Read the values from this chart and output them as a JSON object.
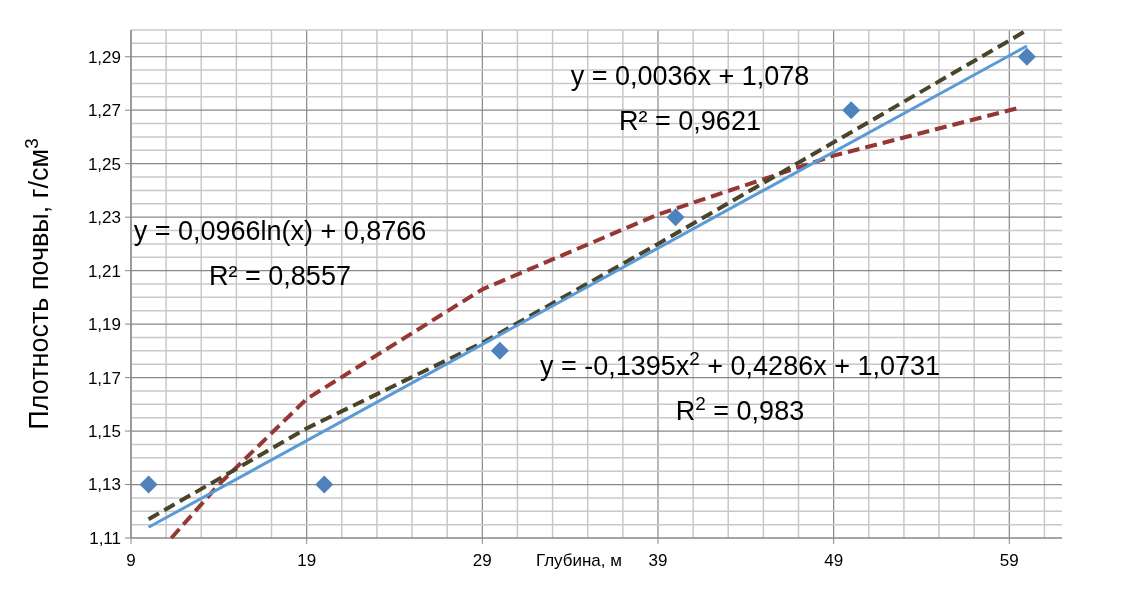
{
  "chart_data": {
    "type": "scatter",
    "xlabel": "Глубина, м",
    "ylabel": "Плотность почвы, г/см$^{3}$",
    "xlim": [
      9,
      62
    ],
    "xticks": [
      9,
      {
        "value": 11,
        "label": null
      },
      {
        "value": 13,
        "label": null
      },
      {
        "value": 15,
        "label": null
      },
      {
        "value": 17,
        "label": null
      },
      19,
      {
        "value": 21,
        "label": null
      },
      {
        "value": 23,
        "label": null
      },
      {
        "value": 25,
        "label": null
      },
      {
        "value": 27,
        "label": null
      },
      29,
      {
        "value": 31,
        "label": null
      },
      {
        "value": 33,
        "label": null
      },
      {
        "value": 35,
        "label": null
      },
      {
        "value": 37,
        "label": null
      },
      39,
      {
        "value": 41,
        "label": null
      },
      {
        "value": 43,
        "label": null
      },
      {
        "value": 45,
        "label": null
      },
      {
        "value": 47,
        "label": null
      },
      49,
      {
        "value": 51,
        "label": null
      },
      {
        "value": 53,
        "label": null
      },
      {
        "value": 55,
        "label": null
      },
      {
        "value": 57,
        "label": null
      },
      59,
      {
        "value": 61,
        "label": null
      }
    ],
    "ylim": [
      1.11,
      1.3
    ],
    "yticks": [
      {
        "value": 1.11,
        "label": "1,11"
      },
      {
        "value": 1.115,
        "label": null
      },
      {
        "value": 1.12,
        "label": null
      },
      {
        "value": 1.125,
        "label": null
      },
      {
        "value": 1.13,
        "label": "1,13"
      },
      {
        "value": 1.135,
        "label": null
      },
      {
        "value": 1.14,
        "label": null
      },
      {
        "value": 1.145,
        "label": null
      },
      {
        "value": 1.15,
        "label": "1,15"
      },
      {
        "value": 1.155,
        "label": null
      },
      {
        "value": 1.16,
        "label": null
      },
      {
        "value": 1.165,
        "label": null
      },
      {
        "value": 1.17,
        "label": "1,17"
      },
      {
        "value": 1.175,
        "label": null
      },
      {
        "value": 1.18,
        "label": null
      },
      {
        "value": 1.185,
        "label": null
      },
      {
        "value": 1.19,
        "label": "1,19"
      },
      {
        "value": 1.195,
        "label": null
      },
      {
        "value": 1.2,
        "label": null
      },
      {
        "value": 1.205,
        "label": null
      },
      {
        "value": 1.21,
        "label": "1,21"
      },
      {
        "value": 1.215,
        "label": null
      },
      {
        "value": 1.22,
        "label": null
      },
      {
        "value": 1.225,
        "label": null
      },
      {
        "value": 1.23,
        "label": "1,23"
      },
      {
        "value": 1.235,
        "label": null
      },
      {
        "value": 1.24,
        "label": null
      },
      {
        "value": 1.245,
        "label": null
      },
      {
        "value": 1.25,
        "label": "1,25"
      },
      {
        "value": 1.255,
        "label": null
      },
      {
        "value": 1.26,
        "label": null
      },
      {
        "value": 1.265,
        "label": null
      },
      {
        "value": 1.27,
        "label": "1,27"
      },
      {
        "value": 1.275,
        "label": null
      },
      {
        "value": 1.28,
        "label": null
      },
      {
        "value": 1.285,
        "label": null
      },
      {
        "value": 1.29,
        "label": "1,29"
      },
      {
        "value": 1.295,
        "label": null
      },
      {
        "value": 1.3,
        "label": null
      }
    ],
    "grid": true,
    "series": [
      {
        "type": "line",
        "color": "#953735",
        "line_style": "dashed",
        "x": [
          11.3,
          14,
          19,
          29,
          39,
          49,
          59.6
        ],
        "values": [
          1.11,
          1.13,
          1.162,
          1.203,
          1.231,
          1.253,
          1.271
        ]
      },
      {
        "type": "line",
        "color": "#4a452a",
        "line_style": "dashed",
        "x": [
          10,
          19,
          29,
          39,
          49,
          59,
          60
        ],
        "values": [
          1.117,
          1.151,
          1.183,
          1.22,
          1.258,
          1.296,
          1.3
        ]
      },
      {
        "type": "line",
        "color": "#5b9bd5",
        "line_style": "solid",
        "x": [
          10,
          60
        ],
        "values": [
          1.114,
          1.294
        ]
      },
      {
        "color": "#4f81bd",
        "marker": "diamond",
        "x": [
          10,
          20,
          30,
          40,
          50,
          60
        ],
        "values": [
          1.13,
          1.13,
          1.18,
          1.23,
          1.27,
          1.29
        ]
      }
    ],
    "annotations": [
      "y = 0,0036x + 1,078\nR² = 0,9621",
      "y = 0,0966ln(x) + 0,8766\nR² = 0,8557",
      "y = -0,1395x$^{2}$ + 0,4286x + 1,0731\nR$^{2}$ = 0,983"
    ]
  }
}
